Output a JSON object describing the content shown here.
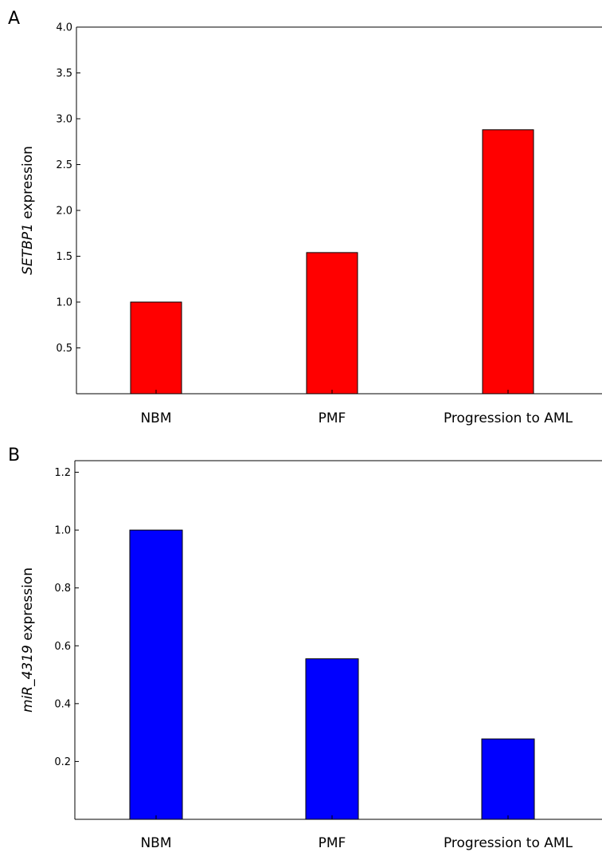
{
  "chart_data": [
    {
      "type": "bar",
      "panel": "A",
      "categories": [
        "NBM",
        "PMF",
        "Progression to AML"
      ],
      "values": [
        1.0,
        1.54,
        2.88
      ],
      "color": "#ff0000",
      "ylabel_gene": "SETBP1",
      "ylabel_rest": " expression",
      "ylim": [
        0,
        4.0
      ],
      "yticks": [
        0.5,
        1.0,
        1.5,
        2.0,
        2.5,
        3.0,
        3.5,
        4.0
      ],
      "ytick_labels": [
        "0.5",
        "1.0",
        "1.5",
        "2.0",
        "2.5",
        "3.0",
        "3.5",
        "4.0"
      ],
      "grid": false
    },
    {
      "type": "bar",
      "panel": "B",
      "categories": [
        "NBM",
        "PMF",
        "Progression to AML"
      ],
      "values": [
        1.0,
        0.555,
        0.278
      ],
      "color": "#0000ff",
      "ylabel_gene": "miR_4319",
      "ylabel_rest": " expression",
      "ylim": [
        0,
        1.24
      ],
      "yticks": [
        0.2,
        0.4,
        0.6,
        0.8,
        1.0,
        1.2
      ],
      "ytick_labels": [
        "0.2",
        "0.4",
        "0.6",
        "0.8",
        "1.0",
        "1.2"
      ],
      "grid": false
    }
  ]
}
